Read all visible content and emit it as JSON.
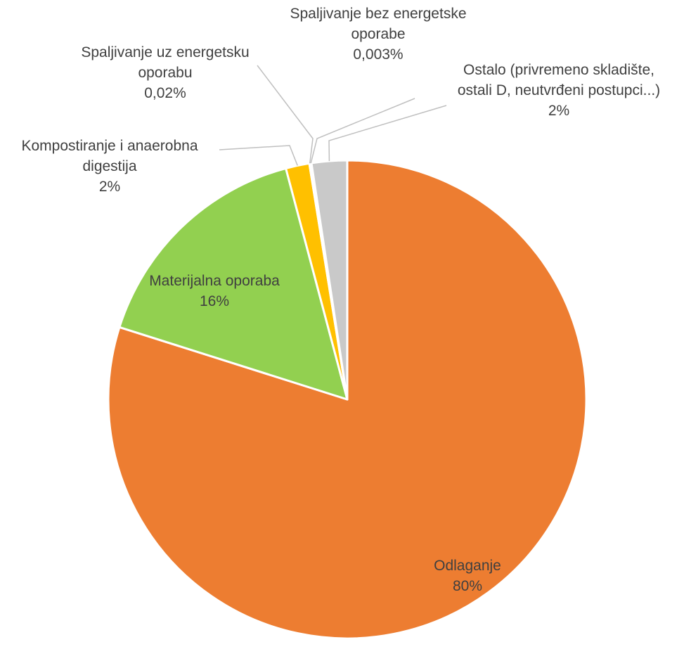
{
  "chart_data": {
    "type": "pie",
    "title": "",
    "slices": [
      {
        "key": "odlaganje",
        "label": "Odlaganje",
        "percent_label": "80%",
        "value": 80,
        "color": "#ED7D31"
      },
      {
        "key": "materijalna",
        "label": "Materijalna oporaba",
        "percent_label": "16%",
        "value": 16,
        "color": "#92D050"
      },
      {
        "key": "kompostiranje",
        "label": "Kompostiranje i anaerobna digestija",
        "label_lines": [
          "Kompostiranje i anaerobna",
          "digestija"
        ],
        "percent_label": "2%",
        "value": 1.6,
        "color": "#FFC000"
      },
      {
        "key": "spaljivanje-uz",
        "label": "Spaljivanje uz energetsku oporabu",
        "label_lines": [
          "Spaljivanje uz energetsku",
          "oporabu"
        ],
        "percent_label": "0,02%",
        "value": 0.02,
        "color": "#5B9BD5"
      },
      {
        "key": "spaljivanje-bez",
        "label": "Spaljivanje bez energetske oporabe",
        "label_lines": [
          "Spaljivanje bez energetske",
          "oporabe"
        ],
        "percent_label": "0,003%",
        "value": 0.003,
        "color": "#7F7F7F"
      },
      {
        "key": "ostalo",
        "label": "Ostalo (privremeno skladište, ostali D, neutvrđeni postupci...)",
        "label_lines": [
          "Ostalo (privremeno skladište,",
          "ostali D, neutvrđeni postupci...)"
        ],
        "percent_label": "2%",
        "value": 2.4,
        "color": "#C9C9C9"
      }
    ],
    "start_angle_deg": 0,
    "direction": "clockwise"
  }
}
